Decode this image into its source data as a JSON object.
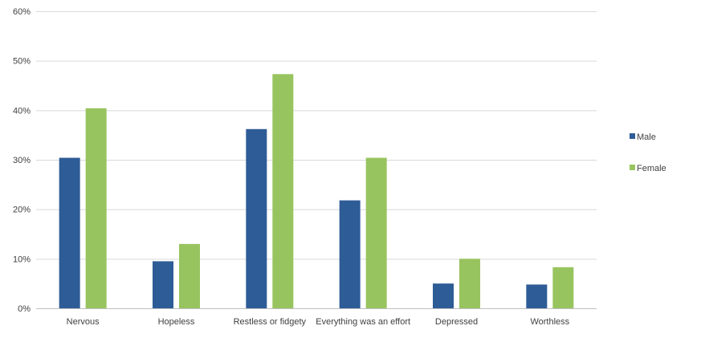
{
  "chart_data": {
    "type": "bar",
    "title": "",
    "xlabel": "",
    "ylabel": "",
    "categories": [
      "Nervous",
      "Hopeless",
      "Restless or fidgety",
      "Everything was an effort",
      "Depressed",
      "Worthless"
    ],
    "series": [
      {
        "name": "Male",
        "color": "#2e5c96",
        "values": [
          30.4,
          9.5,
          36.2,
          21.8,
          5.0,
          4.8
        ]
      },
      {
        "name": "Female",
        "color": "#98c45f",
        "values": [
          40.4,
          13.0,
          47.3,
          30.4,
          10.0,
          8.3
        ]
      }
    ],
    "ylim": [
      0,
      60
    ],
    "yticks": [
      0,
      10,
      20,
      30,
      40,
      50,
      60
    ],
    "ytick_labels": [
      "0%",
      "10%",
      "20%",
      "30%",
      "40%",
      "50%",
      "60%"
    ],
    "grid": true,
    "legend_position": "right"
  }
}
